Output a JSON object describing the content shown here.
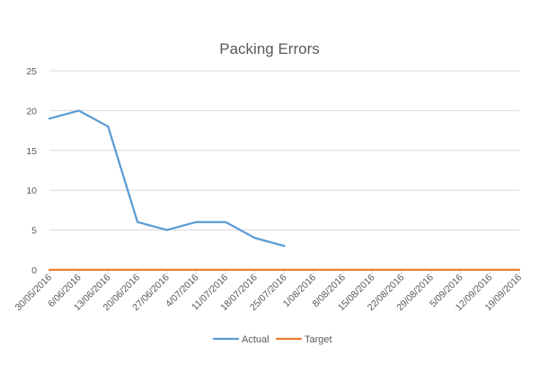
{
  "chart_data": {
    "type": "line",
    "title": "Packing Errors",
    "xlabel": "",
    "ylabel": "",
    "categories": [
      "30/05/2016",
      "6/06/2016",
      "13/06/2016",
      "20/06/2016",
      "27/06/2016",
      "4/07/2016",
      "11/07/2016",
      "18/07/2016",
      "25/07/2016",
      "1/08/2016",
      "8/08/2016",
      "15/08/2016",
      "22/08/2016",
      "29/08/2016",
      "5/09/2016",
      "12/09/2016",
      "19/09/2016"
    ],
    "y_ticks": [
      "0",
      "5",
      "10",
      "15",
      "20",
      "25"
    ],
    "ylim": [
      0,
      25
    ],
    "grid": true,
    "legend_position": "bottom",
    "series": [
      {
        "name": "Actual",
        "color": "#5B9BD5",
        "values": [
          19,
          20,
          18,
          6,
          5,
          6,
          6,
          4,
          3,
          null,
          null,
          null,
          null,
          null,
          null,
          null,
          null
        ]
      },
      {
        "name": "Target",
        "color": "#ED7D31",
        "values": [
          0,
          0,
          0,
          0,
          0,
          0,
          0,
          0,
          0,
          0,
          0,
          0,
          0,
          0,
          0,
          0,
          0
        ]
      }
    ]
  }
}
